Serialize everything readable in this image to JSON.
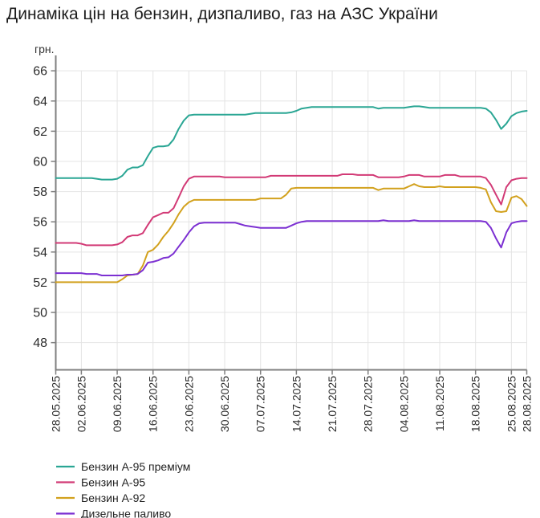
{
  "title": "Динаміка цін на бензин, дизпаливо, газ на АЗС України",
  "colors": {
    "background": "#ffffff",
    "axis": "#7f7f7f",
    "grid": "#e4e4e4",
    "tick_text": "#2b2b2b",
    "legend_text": "#222222",
    "title_text": "#1c1c1c"
  },
  "chart_data": {
    "type": "line",
    "title": "Динаміка цін на бензин, дизпаливо, газ на АЗС України",
    "ylabel": "грн.",
    "grid": true,
    "legend_position": "bottom-left",
    "ylim": [
      46.2,
      66.7
    ],
    "y_ticks": [
      66,
      64,
      62,
      60,
      58,
      56,
      54,
      52,
      50,
      48
    ],
    "x_start_date": "28.05.2025",
    "x_end_date": "28.08.2025",
    "x_tick_labels": [
      "28.05.2025",
      "02.06.2025",
      "09.06.2025",
      "16.06.2025",
      "23.06.2025",
      "30.06.2025",
      "07.07.2025",
      "14.07.2025",
      "21.07.2025",
      "28.07.2025",
      "04.08.2025",
      "11.08.2025",
      "18.08.2025",
      "25.08.2025",
      "28.08.2025"
    ],
    "x_tick_days": [
      0,
      5,
      12,
      19,
      26,
      33,
      40,
      47,
      54,
      61,
      68,
      75,
      82,
      89,
      92
    ],
    "x_total_days": 92,
    "series": [
      {
        "name": "Бензин А-95 преміум",
        "slug": "a95-premium",
        "color": "#2aa694",
        "values": [
          58.9,
          58.9,
          58.9,
          58.9,
          58.9,
          58.9,
          58.9,
          58.9,
          58.85,
          58.8,
          58.8,
          58.8,
          58.85,
          59.05,
          59.45,
          59.6,
          59.6,
          59.75,
          60.35,
          60.9,
          61.0,
          61.0,
          61.05,
          61.45,
          62.15,
          62.7,
          63.05,
          63.1,
          63.1,
          63.1,
          63.1,
          63.1,
          63.1,
          63.1,
          63.1,
          63.1,
          63.1,
          63.1,
          63.15,
          63.2,
          63.2,
          63.2,
          63.2,
          63.2,
          63.2,
          63.2,
          63.25,
          63.35,
          63.5,
          63.55,
          63.6,
          63.6,
          63.6,
          63.6,
          63.6,
          63.6,
          63.6,
          63.6,
          63.6,
          63.6,
          63.6,
          63.6,
          63.6,
          63.5,
          63.55,
          63.55,
          63.55,
          63.55,
          63.55,
          63.6,
          63.65,
          63.65,
          63.6,
          63.55,
          63.55,
          63.55,
          63.55,
          63.55,
          63.55,
          63.55,
          63.55,
          63.55,
          63.55,
          63.55,
          63.5,
          63.25,
          62.75,
          62.15,
          62.5,
          63.0,
          63.2,
          63.3,
          63.35
        ]
      },
      {
        "name": "Бензин А-95",
        "slug": "a95",
        "color": "#d23a76",
        "values": [
          54.6,
          54.6,
          54.6,
          54.6,
          54.6,
          54.55,
          54.45,
          54.45,
          54.45,
          54.45,
          54.45,
          54.45,
          54.5,
          54.65,
          55.0,
          55.1,
          55.1,
          55.25,
          55.8,
          56.3,
          56.45,
          56.6,
          56.6,
          56.9,
          57.6,
          58.35,
          58.85,
          59.0,
          59.0,
          59.0,
          59.0,
          59.0,
          59.0,
          58.95,
          58.95,
          58.95,
          58.95,
          58.95,
          58.95,
          58.95,
          58.95,
          58.95,
          59.05,
          59.05,
          59.05,
          59.05,
          59.05,
          59.05,
          59.05,
          59.05,
          59.05,
          59.05,
          59.05,
          59.05,
          59.05,
          59.05,
          59.15,
          59.15,
          59.15,
          59.1,
          59.1,
          59.1,
          59.1,
          58.95,
          58.95,
          58.95,
          58.95,
          58.95,
          59.0,
          59.1,
          59.1,
          59.1,
          59.0,
          59.0,
          59.0,
          59.0,
          59.1,
          59.1,
          59.1,
          59.0,
          59.0,
          59.0,
          59.0,
          59.0,
          58.9,
          58.45,
          57.8,
          57.15,
          58.3,
          58.75,
          58.85,
          58.9,
          58.9
        ]
      },
      {
        "name": "Бензин А-92",
        "slug": "a92",
        "color": "#d2a11d",
        "values": [
          52.0,
          52.0,
          52.0,
          52.0,
          52.0,
          52.0,
          52.0,
          52.0,
          52.0,
          52.0,
          52.0,
          52.0,
          52.0,
          52.2,
          52.45,
          52.5,
          52.55,
          53.1,
          54.0,
          54.15,
          54.5,
          55.0,
          55.4,
          55.9,
          56.5,
          57.0,
          57.3,
          57.45,
          57.45,
          57.45,
          57.45,
          57.45,
          57.45,
          57.45,
          57.45,
          57.45,
          57.45,
          57.45,
          57.45,
          57.45,
          57.55,
          57.55,
          57.55,
          57.55,
          57.55,
          57.8,
          58.2,
          58.25,
          58.25,
          58.25,
          58.25,
          58.25,
          58.25,
          58.25,
          58.25,
          58.25,
          58.25,
          58.25,
          58.25,
          58.25,
          58.25,
          58.25,
          58.25,
          58.1,
          58.2,
          58.2,
          58.2,
          58.2,
          58.2,
          58.35,
          58.5,
          58.35,
          58.3,
          58.3,
          58.3,
          58.35,
          58.3,
          58.3,
          58.3,
          58.3,
          58.3,
          58.3,
          58.3,
          58.25,
          58.15,
          57.3,
          56.7,
          56.65,
          56.7,
          57.6,
          57.7,
          57.5,
          57.05
        ]
      },
      {
        "name": "Дизельне паливо",
        "slug": "diesel",
        "color": "#7c30d2",
        "values": [
          52.6,
          52.6,
          52.6,
          52.6,
          52.6,
          52.6,
          52.55,
          52.55,
          52.55,
          52.45,
          52.45,
          52.45,
          52.45,
          52.45,
          52.5,
          52.5,
          52.55,
          52.8,
          53.3,
          53.35,
          53.45,
          53.6,
          53.65,
          53.9,
          54.35,
          54.8,
          55.3,
          55.7,
          55.9,
          55.95,
          55.95,
          55.95,
          55.95,
          55.95,
          55.95,
          55.95,
          55.85,
          55.75,
          55.7,
          55.65,
          55.6,
          55.6,
          55.6,
          55.6,
          55.6,
          55.6,
          55.75,
          55.9,
          56.0,
          56.05,
          56.05,
          56.05,
          56.05,
          56.05,
          56.05,
          56.05,
          56.05,
          56.05,
          56.05,
          56.05,
          56.05,
          56.05,
          56.05,
          56.05,
          56.1,
          56.05,
          56.05,
          56.05,
          56.05,
          56.05,
          56.1,
          56.05,
          56.05,
          56.05,
          56.05,
          56.05,
          56.05,
          56.05,
          56.05,
          56.05,
          56.05,
          56.05,
          56.05,
          56.05,
          56.0,
          55.6,
          54.9,
          54.3,
          55.3,
          55.9,
          56.0,
          56.05,
          56.05
        ]
      }
    ]
  }
}
